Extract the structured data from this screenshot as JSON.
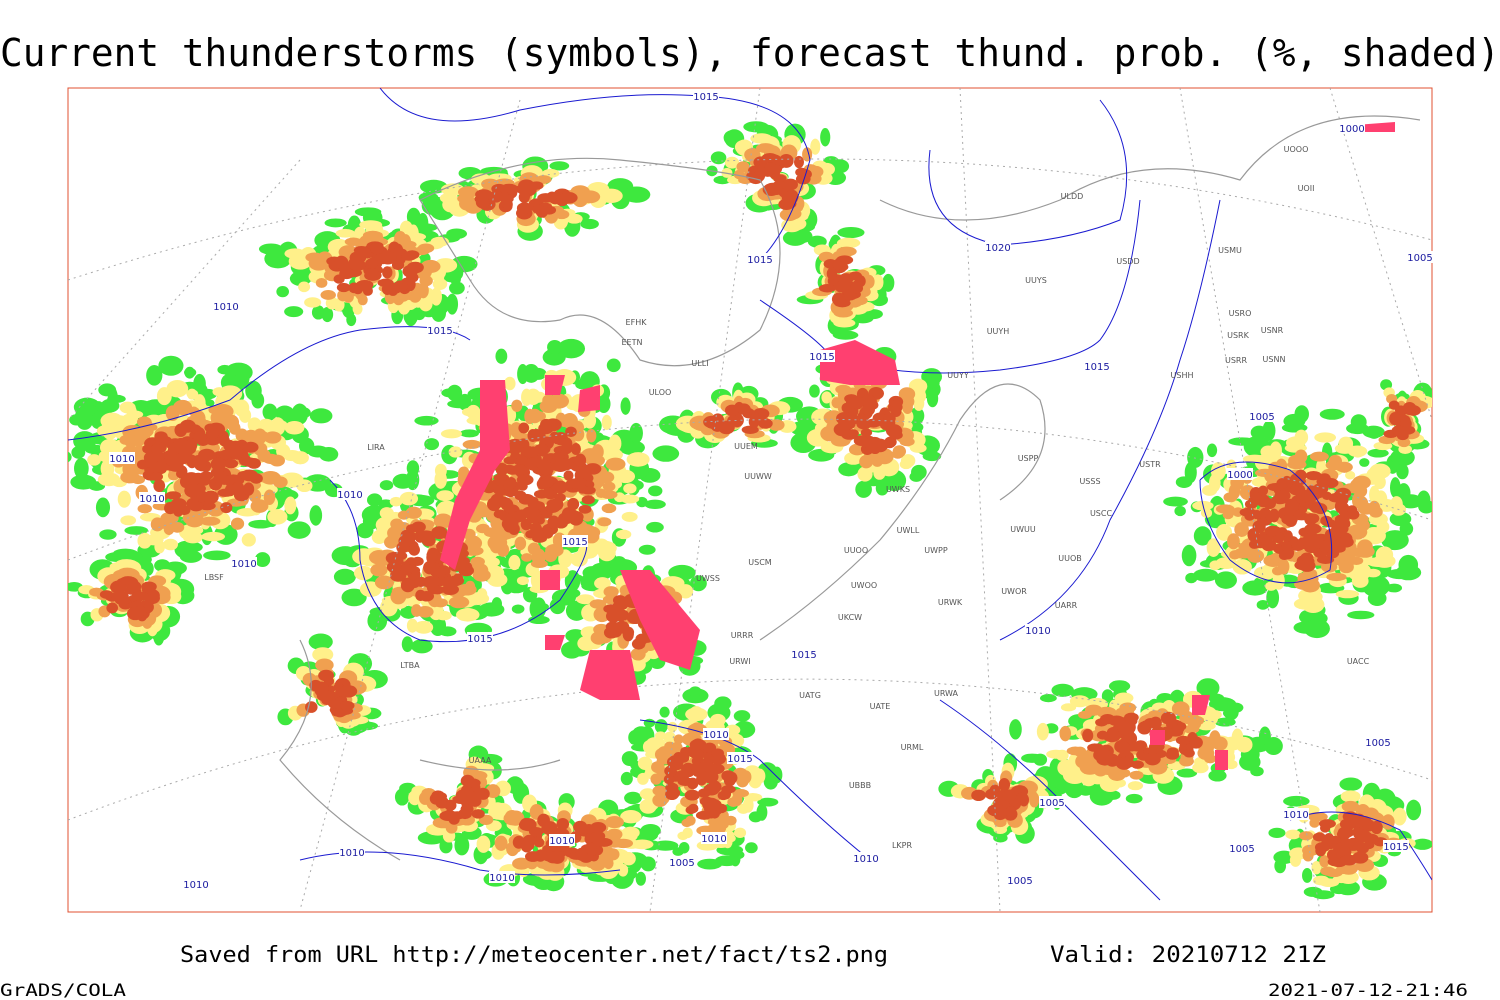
{
  "title": "Current thunderstorms (symbols), forecast thund. prob. (%, shaded)",
  "footer": {
    "saved": "Saved from URL http://meteocenter.net/fact/ts2.png",
    "valid": "Valid: 20210712 21Z",
    "credit": "GrADS/COLA",
    "timestamp": "2021-07-12-21:46"
  },
  "map": {
    "isobars": [
      "1015",
      "1000",
      "1020",
      "1015",
      "1005",
      "1010",
      "1015",
      "1015",
      "1015",
      "1005",
      "1010",
      "1000",
      "1010",
      "1010",
      "1015",
      "1010",
      "1015",
      "1010",
      "1015",
      "1010",
      "1015",
      "1005",
      "1005",
      "1010",
      "1010",
      "1010",
      "1015",
      "1010",
      "1005",
      "1010",
      "1005",
      "1005",
      "1010",
      "1010"
    ],
    "stations": [
      "ULDD",
      "UUYS",
      "USDD",
      "USMU",
      "UOOO",
      "UOII",
      "UUYH",
      "UUYY",
      "USRO",
      "USRK",
      "USNR",
      "USRR",
      "USNN",
      "USHH",
      "EFHK",
      "EETN",
      "ULLI",
      "ULOO",
      "UUEM",
      "UUWW",
      "UWKS",
      "USPP",
      "USTR",
      "USSS",
      "USCC",
      "UWLL",
      "UWUU",
      "UWPP",
      "UUOO",
      "USCM",
      "UUOB",
      "UWSS",
      "UWOO",
      "UWOR",
      "UARR",
      "URWK",
      "UKCW",
      "URRR",
      "URWI",
      "UATG",
      "URWA",
      "UATE",
      "URML",
      "UBBB",
      "LKPR",
      "LIRA",
      "LBSF",
      "LTBA",
      "UAAA",
      "UACC"
    ]
  }
}
